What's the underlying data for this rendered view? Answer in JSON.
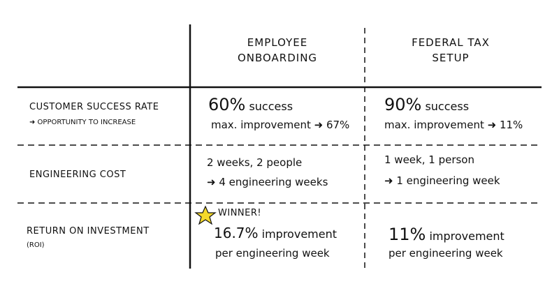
{
  "table": {
    "columns": [
      {
        "lines": [
          "EMPLOYEE",
          "ONBOARDING"
        ]
      },
      {
        "lines": [
          "FEDERAL TAX",
          "SETUP"
        ]
      }
    ],
    "rows": [
      {
        "label": [
          "CUSTOMER SUCCESS RATE",
          "➜ OPPORTUNITY TO INCREASE"
        ],
        "cells": [
          {
            "big": "60%",
            "rest": "success",
            "lines": [
              "max. improvement ➜ 67%"
            ]
          },
          {
            "big": "90%",
            "rest": "success",
            "lines": [
              "max. improvement ➜ 11%"
            ]
          }
        ]
      },
      {
        "label": [
          "ENGINEERING COST"
        ],
        "cells": [
          {
            "lines": [
              "2 weeks, 2 people",
              "➜ 4 engineering weeks"
            ]
          },
          {
            "lines": [
              "1 week, 1 person",
              "➜ 1 engineering week"
            ]
          }
        ]
      },
      {
        "label": [
          "RETURN ON INVESTMENT",
          "(ROI)"
        ],
        "cells": [
          {
            "badge": "WINNER!",
            "big": "16.7%",
            "rest": "improvement",
            "lines": [
              "per engineering week"
            ]
          },
          {
            "big": "11%",
            "rest": "improvement",
            "lines": [
              "per engineering week"
            ]
          }
        ]
      }
    ]
  }
}
